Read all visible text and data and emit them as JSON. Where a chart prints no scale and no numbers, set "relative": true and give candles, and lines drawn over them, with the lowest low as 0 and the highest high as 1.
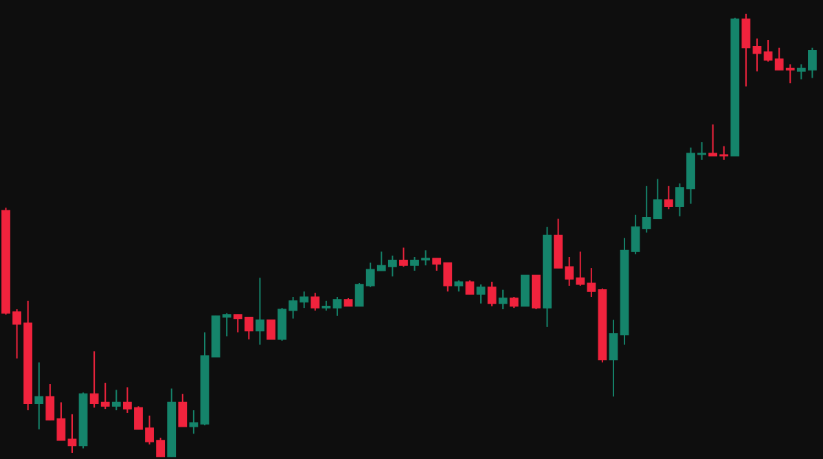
{
  "chart_data": {
    "type": "candlestick",
    "relative": true,
    "categories": [
      null,
      null,
      null,
      null,
      null,
      null,
      null,
      null,
      null,
      null,
      null,
      null,
      null,
      null,
      null,
      null,
      null,
      null,
      null,
      null,
      null,
      null,
      null,
      null,
      null,
      null,
      null,
      null,
      null,
      null,
      null,
      null,
      null,
      null,
      null,
      null,
      null,
      null,
      null,
      null,
      null,
      null,
      null,
      null,
      null,
      null,
      null,
      null,
      null,
      null,
      null,
      null,
      null,
      null,
      null,
      null,
      null,
      null,
      null,
      null,
      null,
      null,
      null,
      null,
      null,
      null,
      null,
      null,
      null,
      null,
      null,
      null,
      null,
      null
    ],
    "ohlc": [
      [
        0.556,
        0.562,
        0.321,
        0.324
      ],
      [
        0.327,
        0.333,
        0.222,
        0.299
      ],
      [
        0.302,
        0.352,
        0.105,
        0.12
      ],
      [
        0.12,
        0.213,
        0.062,
        0.136
      ],
      [
        0.136,
        0.164,
        0.083,
        0.083
      ],
      [
        0.086,
        0.123,
        0.037,
        0.037
      ],
      [
        0.04,
        0.096,
        0.009,
        0.025
      ],
      [
        0.025,
        0.145,
        0.019,
        0.142
      ],
      [
        0.142,
        0.238,
        0.111,
        0.12
      ],
      [
        0.123,
        0.167,
        0.108,
        0.114
      ],
      [
        0.114,
        0.151,
        0.105,
        0.123
      ],
      [
        0.123,
        0.157,
        0.099,
        0.108
      ],
      [
        0.111,
        0.114,
        0.062,
        0.062
      ],
      [
        0.065,
        0.093,
        0.028,
        0.034
      ],
      [
        0.037,
        0.043,
        0,
        0
      ],
      [
        0,
        0.154,
        0,
        0.123
      ],
      [
        0.123,
        0.142,
        0.068,
        0.068
      ],
      [
        0.068,
        0.105,
        0.052,
        0.077
      ],
      [
        0.074,
        0.281,
        0.071,
        0.228
      ],
      [
        0.225,
        0.318,
        0.225,
        0.318
      ],
      [
        0.315,
        0.324,
        0.272,
        0.321
      ],
      [
        0.321,
        0.321,
        0.281,
        0.312
      ],
      [
        0.315,
        0.315,
        0.265,
        0.284
      ],
      [
        0.284,
        0.404,
        0.253,
        0.309
      ],
      [
        0.309,
        0.309,
        0.265,
        0.265
      ],
      [
        0.265,
        0.336,
        0.262,
        0.333
      ],
      [
        0.33,
        0.361,
        0.312,
        0.352
      ],
      [
        0.349,
        0.373,
        0.336,
        0.361
      ],
      [
        0.361,
        0.37,
        0.33,
        0.336
      ],
      [
        0.336,
        0.352,
        0.33,
        0.34
      ],
      [
        0.336,
        0.361,
        0.318,
        0.355
      ],
      [
        0.355,
        0.358,
        0.34,
        0.34
      ],
      [
        0.34,
        0.392,
        0.34,
        0.389
      ],
      [
        0.386,
        0.438,
        0.383,
        0.423
      ],
      [
        0.42,
        0.463,
        0.42,
        0.432
      ],
      [
        0.429,
        0.454,
        0.407,
        0.444
      ],
      [
        0.444,
        0.472,
        0.429,
        0.432
      ],
      [
        0.432,
        0.451,
        0.42,
        0.444
      ],
      [
        0.444,
        0.466,
        0.432,
        0.448
      ],
      [
        0.448,
        0.448,
        0.42,
        0.435
      ],
      [
        0.438,
        0.438,
        0.373,
        0.386
      ],
      [
        0.386,
        0.398,
        0.373,
        0.395
      ],
      [
        0.395,
        0.398,
        0.367,
        0.367
      ],
      [
        0.367,
        0.389,
        0.346,
        0.383
      ],
      [
        0.383,
        0.395,
        0.34,
        0.346
      ],
      [
        0.346,
        0.377,
        0.333,
        0.358
      ],
      [
        0.358,
        0.361,
        0.336,
        0.34
      ],
      [
        0.34,
        0.41,
        0.34,
        0.41
      ],
      [
        0.41,
        0.41,
        0.333,
        0.336
      ],
      [
        0.336,
        0.519,
        0.293,
        0.5
      ],
      [
        0.5,
        0.537,
        0.426,
        0.426
      ],
      [
        0.429,
        0.451,
        0.386,
        0.401
      ],
      [
        0.404,
        0.463,
        0.386,
        0.389
      ],
      [
        0.392,
        0.426,
        0.361,
        0.373
      ],
      [
        0.377,
        0.38,
        0.213,
        0.219
      ],
      [
        0.219,
        0.309,
        0.136,
        0.278
      ],
      [
        0.275,
        0.494,
        0.253,
        0.466
      ],
      [
        0.463,
        0.546,
        0.457,
        0.519
      ],
      [
        0.515,
        0.611,
        0.506,
        0.54
      ],
      [
        0.537,
        0.627,
        0.537,
        0.58
      ],
      [
        0.58,
        0.611,
        0.559,
        0.565
      ],
      [
        0.565,
        0.617,
        0.543,
        0.608
      ],
      [
        0.605,
        0.698,
        0.571,
        0.685
      ],
      [
        0.682,
        0.71,
        0.67,
        0.685
      ],
      [
        0.685,
        0.75,
        0.679,
        0.679
      ],
      [
        0.682,
        0.701,
        0.67,
        0.679
      ],
      [
        0.679,
        0.991,
        0.679,
        0.988
      ],
      [
        0.988,
        1.0,
        0.836,
        0.923
      ],
      [
        0.926,
        0.944,
        0.87,
        0.91
      ],
      [
        0.914,
        0.941,
        0.892,
        0.895
      ],
      [
        0.898,
        0.923,
        0.873,
        0.873
      ],
      [
        0.877,
        0.886,
        0.843,
        0.873
      ],
      [
        0.87,
        0.886,
        0.852,
        0.877
      ],
      [
        0.873,
        0.923,
        0.855,
        0.917
      ]
    ],
    "colors": [
      "#f0233d",
      "#f0233d",
      "#f0233d",
      "#15846b",
      "#f0233d",
      "#f0233d",
      "#f0233d",
      "#15846b",
      "#f0233d",
      "#f0233d",
      "#15846b",
      "#f0233d",
      "#f0233d",
      "#f0233d",
      "#f0233d",
      "#15846b",
      "#f0233d",
      "#15846b",
      "#15846b",
      "#15846b",
      "#15846b",
      "#f0233d",
      "#f0233d",
      "#15846b",
      "#f0233d",
      "#15846b",
      "#15846b",
      "#15846b",
      "#f0233d",
      "#15846b",
      "#15846b",
      "#f0233d",
      "#15846b",
      "#15846b",
      "#15846b",
      "#15846b",
      "#f0233d",
      "#15846b",
      "#15846b",
      "#f0233d",
      "#f0233d",
      "#15846b",
      "#f0233d",
      "#15846b",
      "#f0233d",
      "#15846b",
      "#f0233d",
      "#15846b",
      "#f0233d",
      "#15846b",
      "#f0233d",
      "#f0233d",
      "#f0233d",
      "#f0233d",
      "#f0233d",
      "#15846b",
      "#15846b",
      "#15846b",
      "#15846b",
      "#15846b",
      "#f0233d",
      "#15846b",
      "#15846b",
      "#15846b",
      "#f0233d",
      "#f0233d",
      "#15846b",
      "#f0233d",
      "#f0233d",
      "#f0233d",
      "#f0233d",
      "#f0233d",
      "#15846b",
      "#15846b"
    ]
  }
}
